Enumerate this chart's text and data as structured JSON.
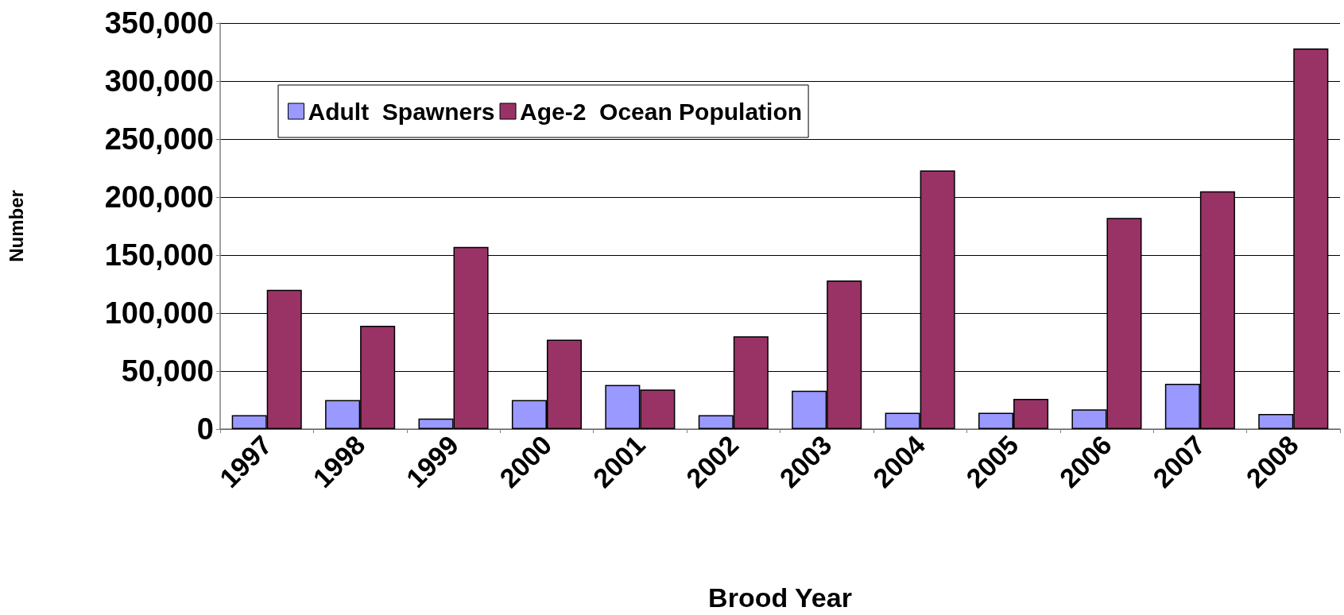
{
  "chart_data": {
    "type": "bar",
    "xlabel": "Brood Year",
    "ylabel": "Number",
    "categories": [
      "1997",
      "1998",
      "1999",
      "2000",
      "2001",
      "2002",
      "2003",
      "2004",
      "2005",
      "2006",
      "2007",
      "2008"
    ],
    "series": [
      {
        "name": "Adult  Spawners",
        "color": "#9999ff",
        "values": [
          12000,
          25000,
          9000,
          25000,
          38000,
          12000,
          33000,
          14000,
          14000,
          17000,
          39000,
          13000
        ]
      },
      {
        "name": "Age-2  Ocean Population",
        "color": "#993366",
        "values": [
          120000,
          89000,
          157000,
          77000,
          34000,
          80000,
          128000,
          223000,
          26000,
          182000,
          205000,
          328000
        ]
      }
    ],
    "ylim": [
      0,
      350000
    ],
    "yticks": [
      0,
      {
        "value": 50000,
        "label": "50,000"
      },
      {
        "value": 100000,
        "label": "100,000"
      },
      {
        "value": 150000,
        "label": "150,000"
      },
      {
        "value": 200000,
        "label": "200,000"
      },
      {
        "value": 250000,
        "label": "250,000"
      },
      {
        "value": 300000,
        "label": "300,000"
      },
      {
        "value": 350000,
        "label": "350,000"
      }
    ],
    "grid": "y",
    "legend": "top left"
  }
}
